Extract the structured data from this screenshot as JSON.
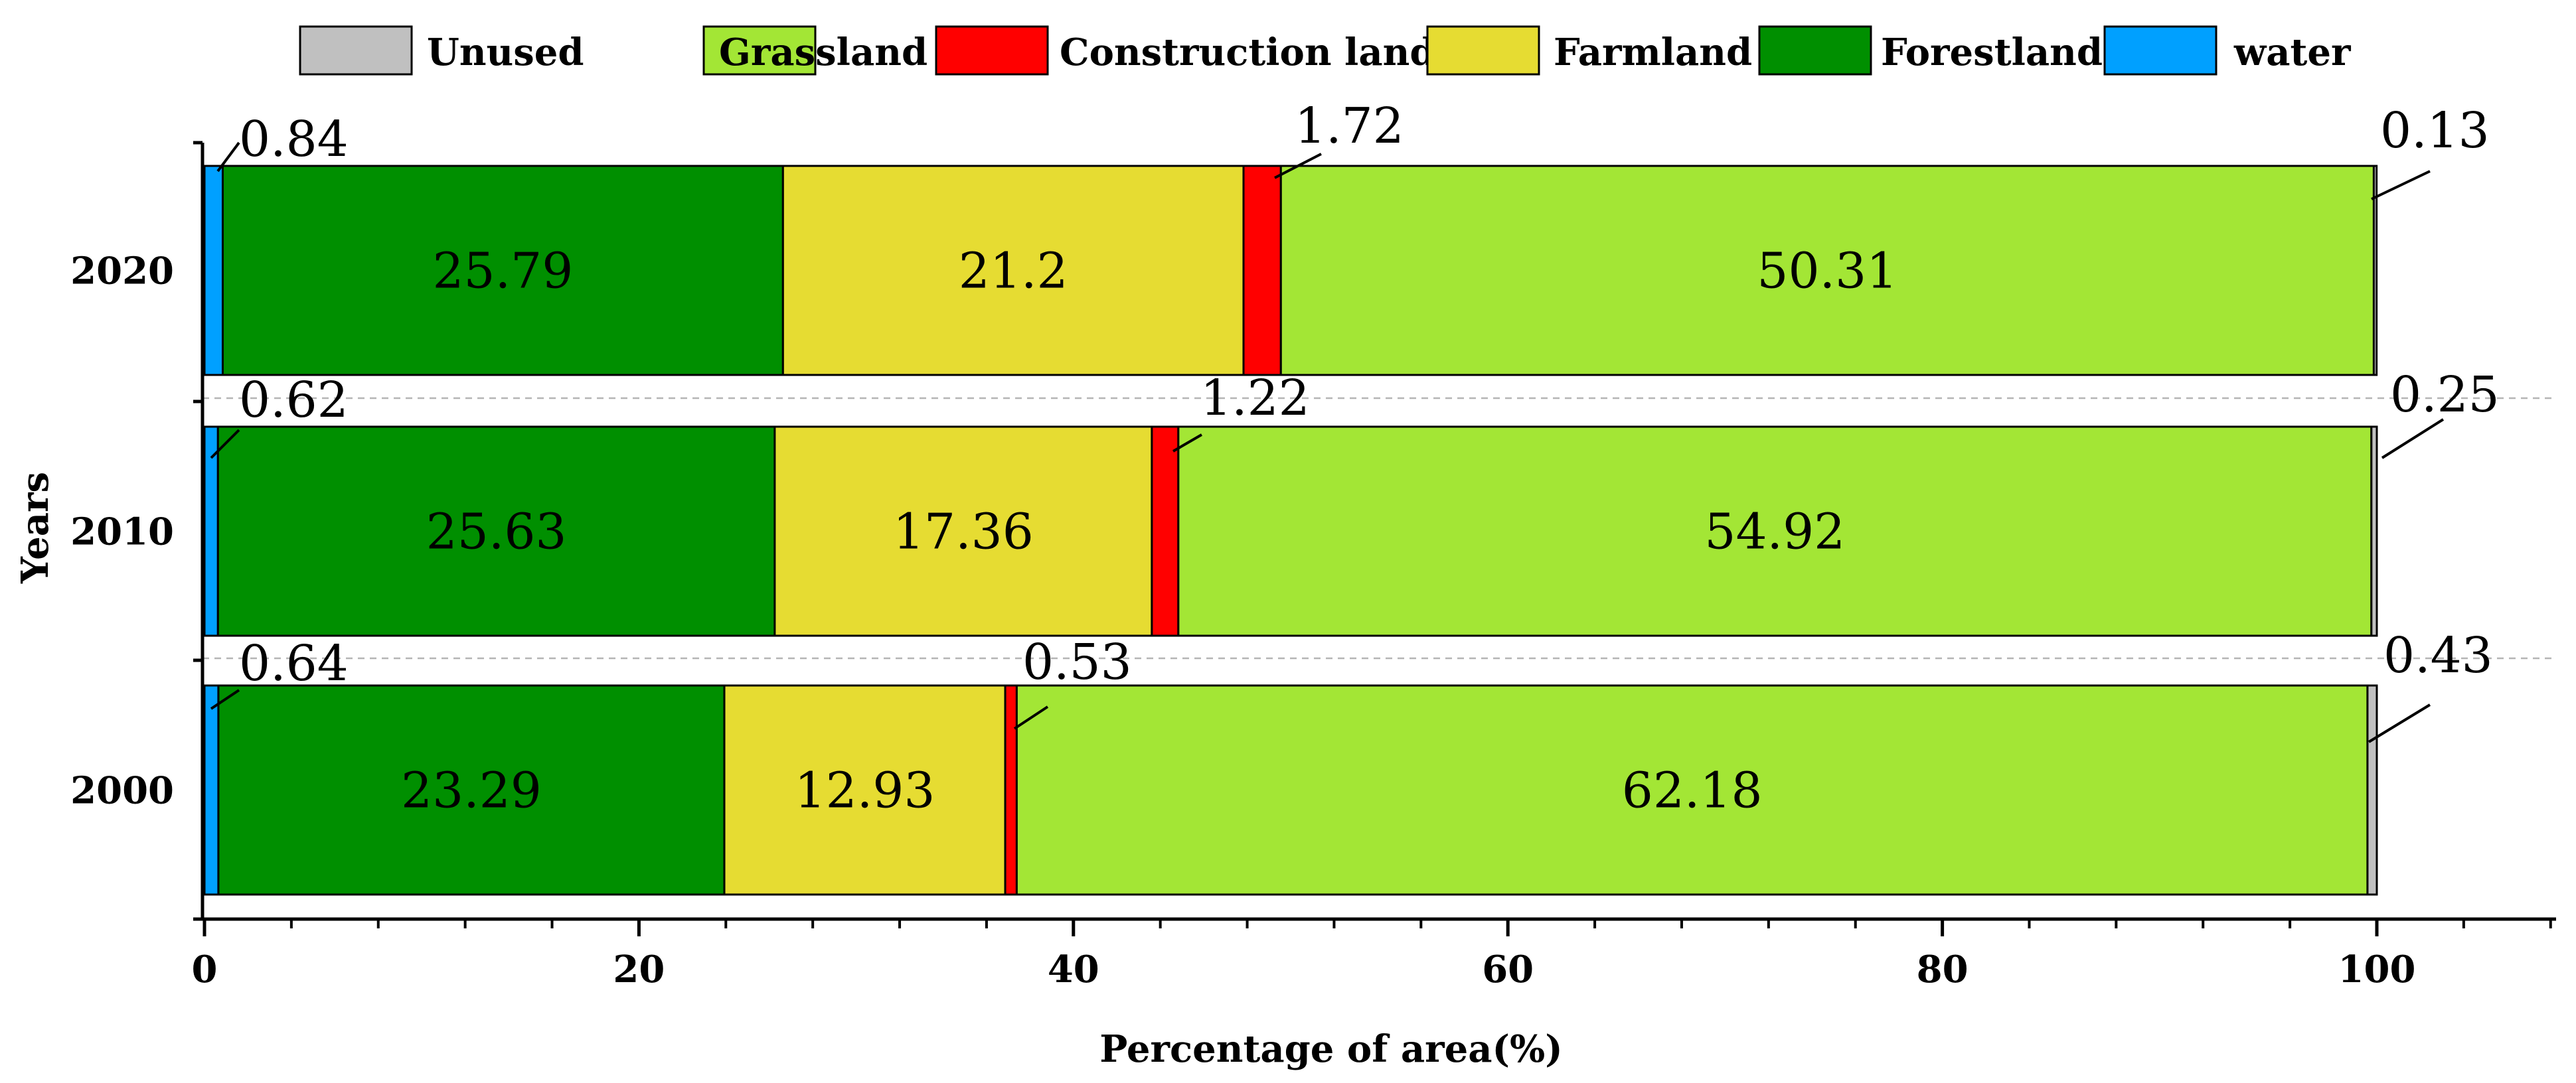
{
  "chart_data": {
    "type": "bar",
    "orientation": "horizontal",
    "stacked": true,
    "xlabel": "Percentage of area(%)",
    "ylabel": "Years",
    "xlim": [
      0,
      108
    ],
    "xticks": [
      0,
      20,
      40,
      60,
      80,
      100
    ],
    "legend_position": "top",
    "categories": [
      "2020",
      "2010",
      "2000"
    ],
    "legend_order": [
      "Unused",
      "Grassland",
      "Construction land",
      "Farmland",
      "Forestland",
      "water"
    ],
    "stack_order": [
      "water",
      "Forestland",
      "Farmland",
      "Construction land",
      "Grassland",
      "Unused"
    ],
    "colors": {
      "Unused": "#c0c0c0",
      "Grassland": "#a3e635",
      "Construction land": "#ff0000",
      "Farmland": "#e6dc32",
      "Forestland": "#008f00",
      "water": "#00a0ff"
    },
    "series": [
      {
        "name": "water",
        "values": [
          0.84,
          0.62,
          0.64
        ]
      },
      {
        "name": "Forestland",
        "values": [
          25.79,
          25.63,
          23.29
        ]
      },
      {
        "name": "Farmland",
        "values": [
          21.2,
          17.36,
          12.93
        ]
      },
      {
        "name": "Construction land",
        "values": [
          1.72,
          1.22,
          0.53
        ]
      },
      {
        "name": "Grassland",
        "values": [
          50.31,
          54.92,
          62.18
        ]
      },
      {
        "name": "Unused",
        "values": [
          0.13,
          0.25,
          0.43
        ]
      }
    ],
    "inside_labels": [
      "Forestland",
      "Farmland",
      "Grassland"
    ],
    "callout_labels": [
      "water",
      "Construction land",
      "Unused"
    ],
    "label_text": {
      "2020": {
        "water": "0.84",
        "Forestland": "25.79",
        "Farmland": "21.2",
        "Construction land": "1.72",
        "Grassland": "50.31",
        "Unused": "0.13"
      },
      "2010": {
        "water": "0.62",
        "Forestland": "25.63",
        "Farmland": "17.36",
        "Construction land": "1.22",
        "Grassland": "54.92",
        "Unused": "0.25"
      },
      "2000": {
        "water": "0.64",
        "Forestland": "23.29",
        "Farmland": "12.93",
        "Construction land": "0.53",
        "Grassland": "62.18",
        "Unused": "0.43"
      }
    }
  }
}
